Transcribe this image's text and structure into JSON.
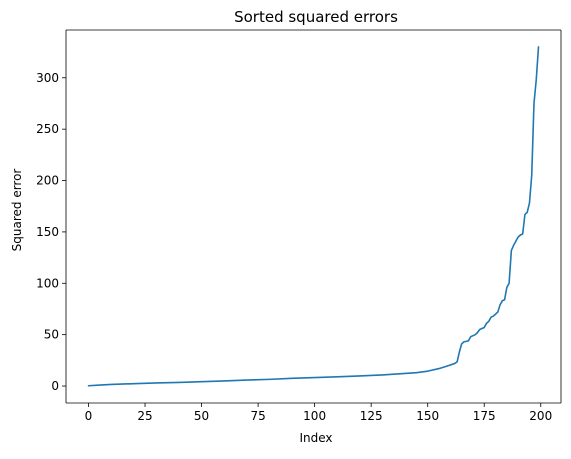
{
  "chart_data": {
    "type": "line",
    "title": "Sorted squared errors",
    "xlabel": "Index",
    "ylabel": "Squared error",
    "xlim": [
      -9.95,
      208.95
    ],
    "ylim": [
      -16.5,
      346.5
    ],
    "xticks": [
      0,
      25,
      50,
      75,
      100,
      125,
      150,
      175,
      200
    ],
    "yticks": [
      0,
      50,
      100,
      150,
      200,
      250,
      300
    ],
    "grid": false,
    "legend": "none",
    "colors": {
      "line": "#1f77b4",
      "axes": "#000000",
      "background": "#ffffff"
    },
    "series": [
      {
        "x": [
          0,
          5,
          10,
          20,
          30,
          40,
          50,
          60,
          70,
          80,
          90,
          100,
          110,
          120,
          130,
          135,
          140,
          145,
          150,
          155,
          158,
          160,
          162,
          163,
          164,
          165,
          166,
          167,
          168,
          169,
          170,
          171,
          172,
          173,
          174,
          175,
          176,
          177,
          178,
          179,
          180,
          181,
          182,
          183,
          184,
          185,
          186,
          187,
          188,
          189,
          190,
          191,
          192,
          193,
          194,
          195,
          196,
          197,
          198,
          199
        ],
        "y": [
          0.3,
          1.0,
          1.6,
          2.3,
          3.0,
          3.5,
          4.2,
          5.0,
          5.8,
          6.5,
          7.5,
          8.3,
          9.0,
          9.8,
          10.8,
          11.5,
          12.3,
          13.0,
          14.5,
          17.0,
          19.0,
          20.5,
          22.0,
          23.5,
          33.0,
          41.0,
          43.0,
          43.5,
          44.0,
          48.0,
          49.0,
          50.0,
          52.0,
          55.0,
          56.0,
          57.0,
          61.0,
          63.0,
          67.0,
          68.0,
          70.0,
          72.0,
          79.0,
          83.0,
          84.0,
          96.0,
          100.0,
          132.0,
          137.0,
          141.0,
          145.0,
          147.0,
          148.0,
          167.0,
          169.0,
          178.0,
          205.0,
          275.0,
          298.0,
          330.0
        ]
      }
    ]
  }
}
